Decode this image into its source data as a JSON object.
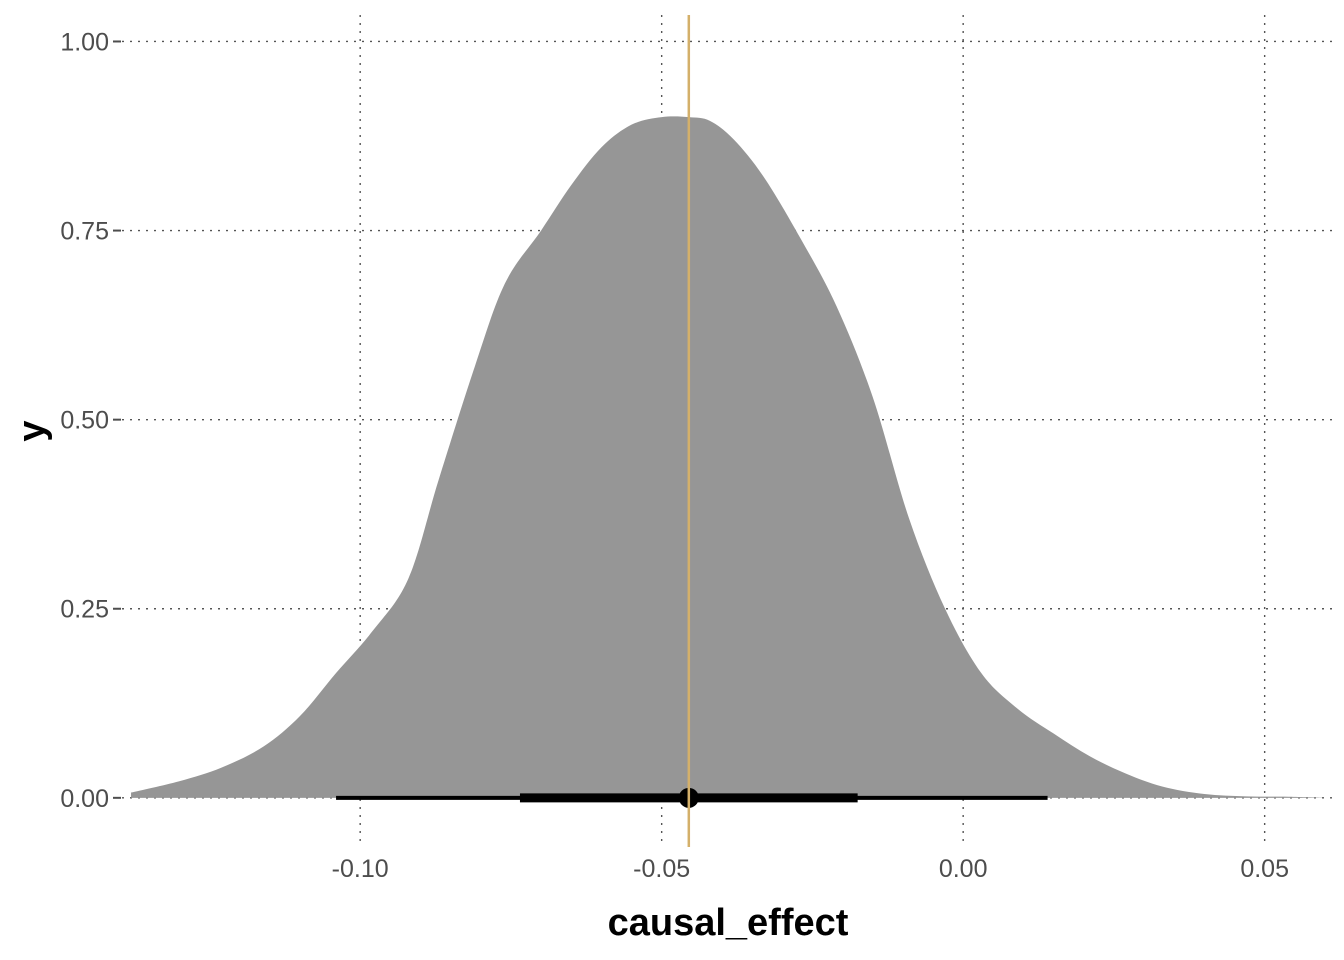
{
  "chart_data": {
    "type": "area",
    "xlabel": "causal_effect",
    "ylabel": "y",
    "xlim": [
      -0.1395,
      0.0615
    ],
    "ylim": [
      -0.065,
      1.035
    ],
    "x_ticks": [
      -0.1,
      -0.05,
      0.0,
      0.05
    ],
    "x_tick_labels": [
      "-0.10",
      "-0.05",
      "0.00",
      "0.05"
    ],
    "y_ticks": [
      0.0,
      0.25,
      0.5,
      0.75,
      1.0
    ],
    "y_tick_labels": [
      "0.00",
      "0.25",
      "0.50",
      "0.75",
      "1.00"
    ],
    "grid": "dotted",
    "density": {
      "x": [
        -0.138,
        -0.13,
        -0.123,
        -0.116,
        -0.11,
        -0.104,
        -0.098,
        -0.092,
        -0.087,
        -0.081,
        -0.076,
        -0.07,
        -0.065,
        -0.06,
        -0.055,
        -0.05,
        -0.0455,
        -0.042,
        -0.038,
        -0.033,
        -0.027,
        -0.021,
        -0.015,
        -0.009,
        -0.003,
        0.003,
        0.009,
        0.015,
        0.021,
        0.027,
        0.033,
        0.04,
        0.047,
        0.054,
        0.0595
      ],
      "y": [
        0.007,
        0.022,
        0.04,
        0.068,
        0.108,
        0.165,
        0.22,
        0.29,
        0.42,
        0.57,
        0.68,
        0.75,
        0.81,
        0.86,
        0.89,
        0.9,
        0.9,
        0.895,
        0.87,
        0.82,
        0.74,
        0.65,
        0.53,
        0.37,
        0.25,
        0.165,
        0.118,
        0.085,
        0.055,
        0.032,
        0.015,
        0.005,
        0.002,
        0.0015,
        0.0003
      ],
      "fill": "#969696"
    },
    "point_interval": {
      "point": -0.0455,
      "inner_interval": [
        -0.0735,
        -0.0175
      ],
      "outer_interval": [
        -0.104,
        0.014
      ],
      "y": 0.0,
      "color": "#000000"
    },
    "vline": {
      "x": -0.0455,
      "color": "#d4b06a"
    }
  }
}
